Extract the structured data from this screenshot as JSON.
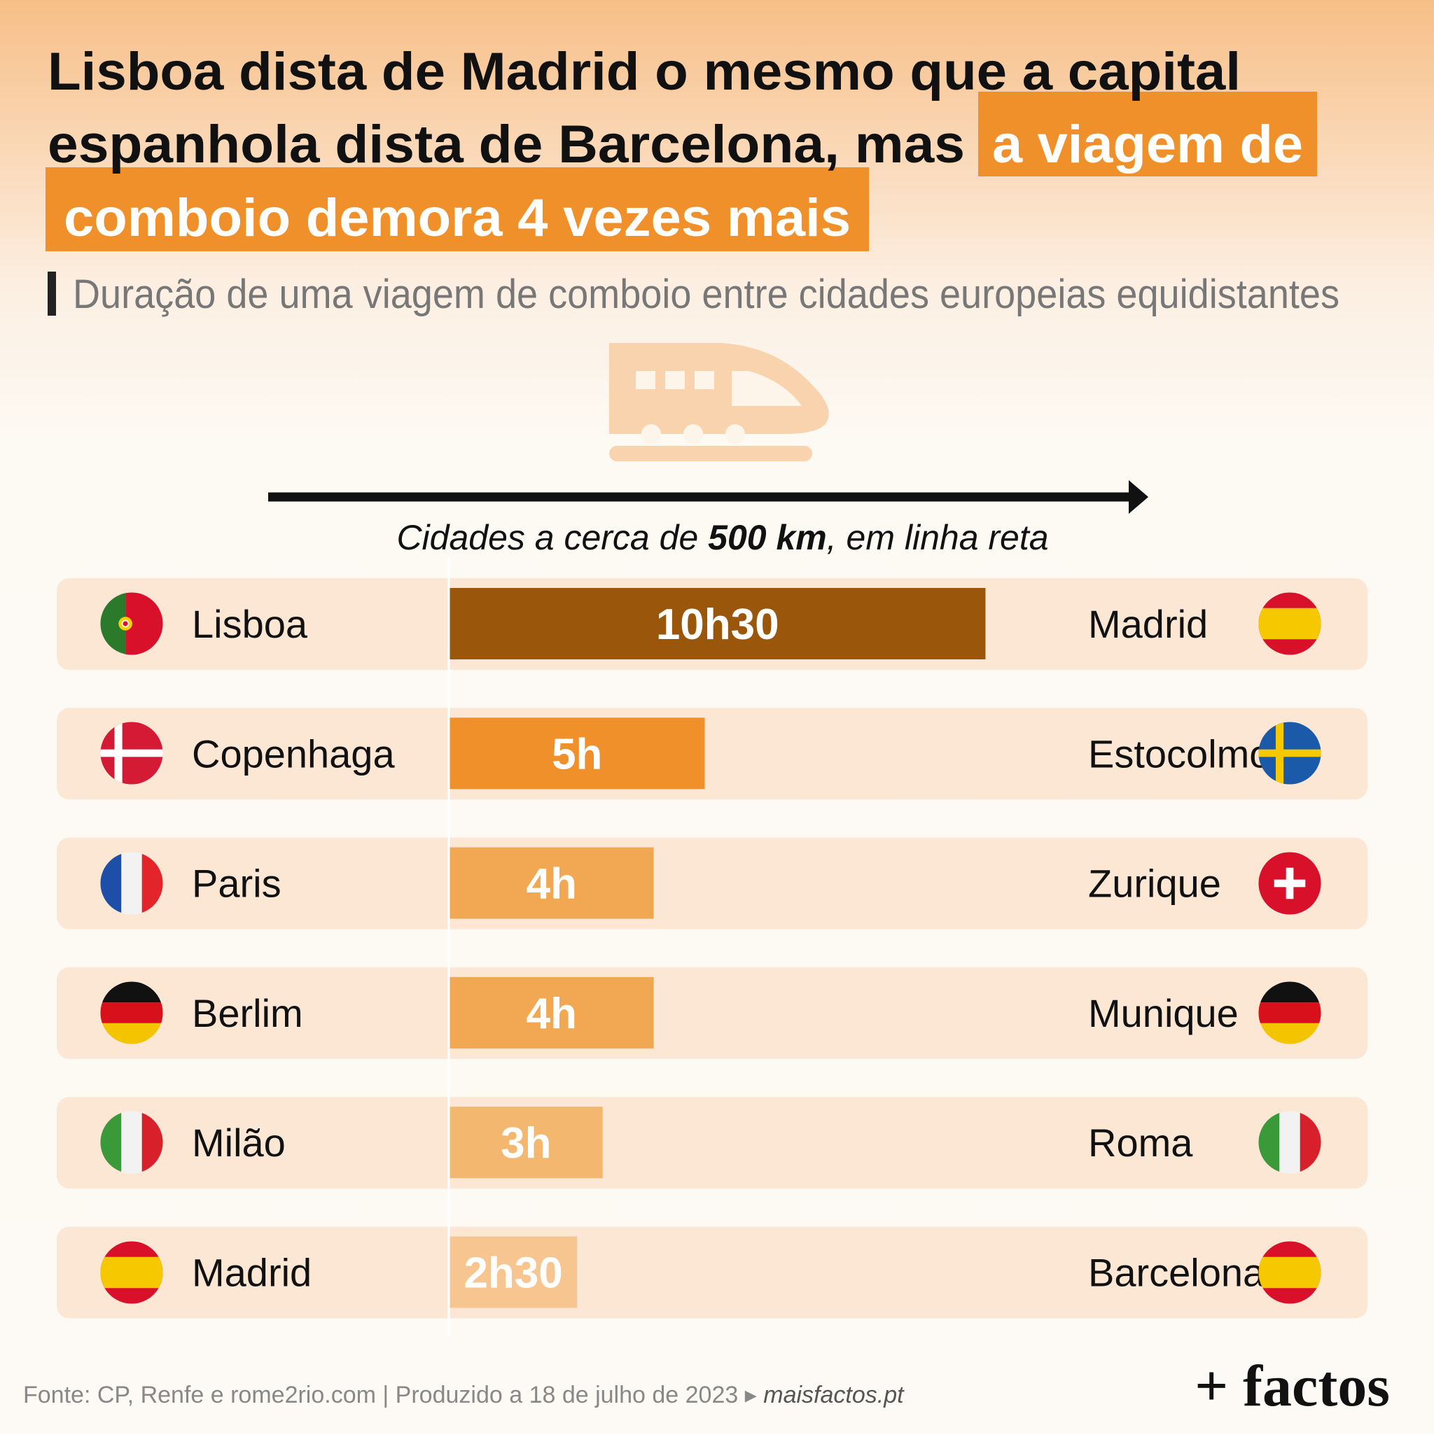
{
  "chart_data": {
    "type": "bar",
    "title": [
      "Lisboa dista de Madrid o mesmo que a capital",
      "espanhola dista de Barcelona, mas"
    ],
    "title_highlight": [
      "a viagem de",
      "comboio demora 4 vezes mais"
    ],
    "subtitle": "Duração de uma viagem de comboio entre cidades europeias equidistantes",
    "annotation": [
      "Cidades a cerca de ",
      "500 km",
      ", em linha reta"
    ],
    "categories": [
      "Lisboa",
      "Copenhaga",
      "Paris",
      "Berlim",
      "Milão",
      "Madrid"
    ],
    "destinations": [
      "Madrid",
      "Estocolmo",
      "Zurique",
      "Munique",
      "Roma",
      "Barcelona"
    ],
    "values": [
      10.5,
      5,
      4,
      4,
      3,
      2.5
    ],
    "value_labels": [
      "10h30",
      "5h",
      "4h",
      "4h",
      "3h",
      "2h30"
    ],
    "colors": [
      "#9a560b",
      "#ef902b",
      "#f2a853",
      "#f2a853",
      "#f4b76f",
      "#f7c690"
    ],
    "source": "Fonte: CP, Renfe e rome2rio.com | Produzido a 18 de julho de 2023 ▸ ",
    "source_link": "maisfactos.pt",
    "logo": "+ factos"
  }
}
